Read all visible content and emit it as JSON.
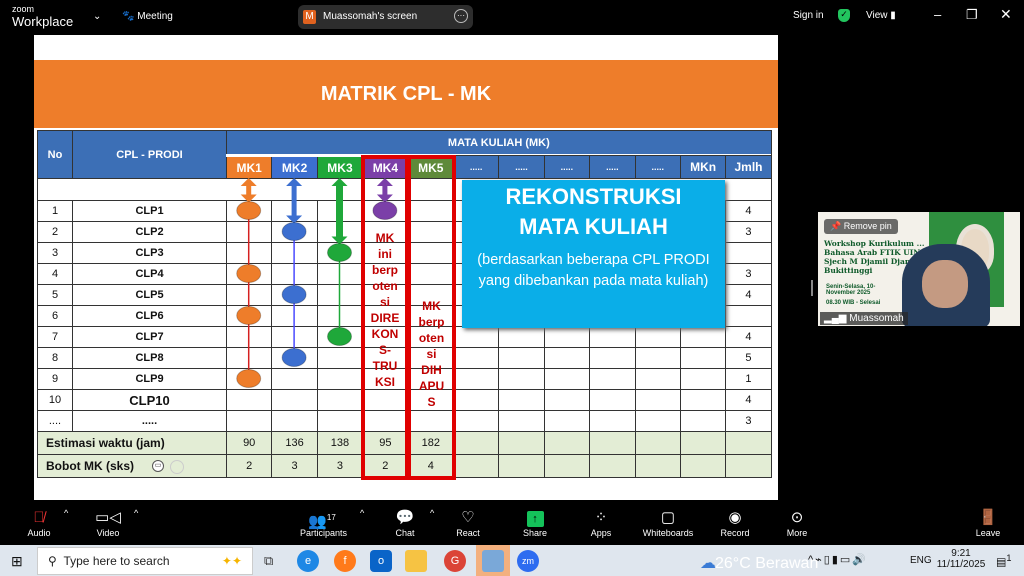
{
  "zoom": {
    "logo_small": "zoom",
    "logo_big": "Workplace",
    "meeting": "Meeting",
    "share_initial": "M",
    "share_title": "Muassomah's screen",
    "sign_in": "Sign in",
    "view": "View"
  },
  "slide": {
    "title": "MATRIK CPL - MK",
    "headers": {
      "no": "No",
      "cpl": "CPL - PRODI",
      "mk_group": "MATA KULIAH (MK)"
    },
    "mk_columns": [
      {
        "label": "MK1",
        "color": "#ee7d2a"
      },
      {
        "label": "MK2",
        "color": "#3c6fd0"
      },
      {
        "label": "MK3",
        "color": "#1fa83a"
      },
      {
        "label": "MK4",
        "color": "#7b3fa8"
      },
      {
        "label": "MK5",
        "color": "#5f8a3a"
      },
      {
        "label": "....."
      },
      {
        "label": "....."
      },
      {
        "label": "....."
      },
      {
        "label": "....."
      },
      {
        "label": "....."
      },
      {
        "label": "MKn"
      },
      {
        "label": "Jmlh"
      }
    ],
    "rows": [
      {
        "no": "1",
        "cpl": "CLP1",
        "jmlh": "4"
      },
      {
        "no": "2",
        "cpl": "CLP2",
        "jmlh": "3"
      },
      {
        "no": "3",
        "cpl": "CLP3",
        "jmlh": ""
      },
      {
        "no": "4",
        "cpl": "CLP4",
        "jmlh": "3"
      },
      {
        "no": "5",
        "cpl": "CLP5",
        "jmlh": "4"
      },
      {
        "no": "6",
        "cpl": "CLP6",
        "jmlh": ""
      },
      {
        "no": "7",
        "cpl": "CLP7",
        "jmlh": "4"
      },
      {
        "no": "8",
        "cpl": "CLP8",
        "jmlh": "5"
      },
      {
        "no": "9",
        "cpl": "CLP9",
        "jmlh": "1"
      },
      {
        "no": "10",
        "cpl": "CLP10",
        "jmlh": "4"
      },
      {
        "no": "....",
        "cpl": ".....",
        "jmlh": "3"
      }
    ],
    "mapping": {
      "MK1": [
        1,
        4,
        6,
        9
      ],
      "MK2": [
        2,
        5,
        8
      ],
      "MK3": [
        3,
        7
      ],
      "MK4": [
        1
      ]
    },
    "estimasi": {
      "label": "Estimasi waktu (jam)",
      "values": [
        "90",
        "136",
        "138",
        "95",
        "182"
      ]
    },
    "bobot": {
      "label": "Bobot MK (sks)",
      "values": [
        "2",
        "3",
        "3",
        "2",
        "4"
      ]
    },
    "mk4_note": "MK\nini\nberp\noten\nsi\nDIRE\nKON\nS-\nTRU\nKSI",
    "mk5_note": "MK\nberp\noten\nsi\nDIH\nAPU\nS",
    "box_title": "REKONSTRUKSI\nMATA KULIAH",
    "box_sub": "(berdasarkan beberapa CPL PRODI yang dibebankan pada mata kuliah)"
  },
  "video": {
    "name": "Muassomah",
    "remove_pin": "Remove pin",
    "poster_title": "Workshop Kurikulum ... Bahasa Arab FTIK UIN Sjech M Djamil Djambek Bukittinggi",
    "poster_date": "Senin-Selasa, 10-November 2025",
    "poster_time": "08.30 WIB - Selesai"
  },
  "toolbar": {
    "audio": "Audio",
    "video": "Video",
    "participants": "Participants",
    "participants_count": "17",
    "chat": "Chat",
    "react": "React",
    "share": "Share",
    "apps": "Apps",
    "whiteboards": "Whiteboards",
    "record": "Record",
    "more": "More",
    "leave": "Leave"
  },
  "taskbar": {
    "search_placeholder": "Type here to search",
    "weather": "26°C  Berawan",
    "lang": "ENG",
    "time": "9:21",
    "date": "11/11/2025",
    "notif": "1"
  }
}
